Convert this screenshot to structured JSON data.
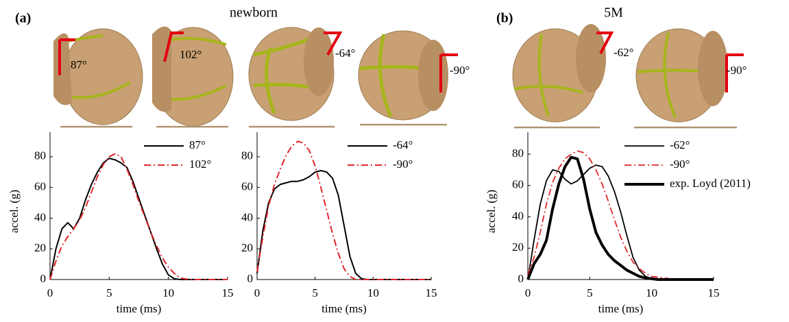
{
  "figure": {
    "panels": [
      {
        "label": "(a)",
        "title": "newborn",
        "angles": [
          "87°",
          "102°",
          "-64°",
          "-90°"
        ]
      },
      {
        "label": "(b)",
        "title": "5M",
        "angles": [
          "-62°",
          "-90°"
        ]
      }
    ]
  },
  "chart_data": [
    {
      "type": "line",
      "xlabel": "time (ms)",
      "ylabel": "accel. (g)",
      "xlim": [
        0,
        15
      ],
      "ylim": [
        0,
        96
      ],
      "xticks": [
        0,
        5,
        10,
        15
      ],
      "yticks": [
        0,
        20,
        40,
        60,
        80
      ],
      "legend": "upper right",
      "series": [
        {
          "name": "87°",
          "color": "#000000",
          "style": "solid",
          "width": 2,
          "x": [
            0,
            0.5,
            1,
            1.5,
            2,
            2.5,
            3,
            3.5,
            4,
            4.5,
            5,
            5.5,
            6,
            6.5,
            7,
            7.5,
            8,
            8.5,
            9,
            9.5,
            10,
            10.5,
            11,
            15
          ],
          "values": [
            0,
            20,
            33,
            37,
            33,
            40,
            52,
            62,
            70,
            76,
            79,
            78,
            76,
            73,
            64,
            53,
            42,
            31,
            20,
            10,
            3,
            0.5,
            0,
            0
          ]
        },
        {
          "name": "102°",
          "color": "#e0252a",
          "style": "dashdot",
          "width": 2,
          "x": [
            0,
            0.5,
            1,
            1.5,
            2,
            2.5,
            3,
            3.5,
            4,
            4.5,
            5,
            5.5,
            6,
            6.5,
            7,
            7.5,
            8,
            8.5,
            9,
            9.5,
            10,
            10.5,
            11,
            11.5,
            12,
            15
          ],
          "values": [
            0,
            12,
            22,
            28,
            33,
            39,
            47,
            57,
            67,
            75,
            80,
            82,
            80,
            72,
            62,
            51,
            41,
            31,
            22,
            14,
            8,
            4,
            1,
            0.3,
            0,
            0
          ]
        }
      ]
    },
    {
      "type": "line",
      "xlabel": "time (ms)",
      "xlim": [
        0,
        15
      ],
      "ylim": [
        0,
        96
      ],
      "xticks": [
        0,
        5,
        10,
        15
      ],
      "yticks": [
        0,
        20,
        40,
        60,
        80
      ],
      "legend": "upper right",
      "series": [
        {
          "name": "-64°",
          "color": "#000000",
          "style": "solid",
          "width": 2,
          "x": [
            0,
            0.5,
            1,
            1.5,
            2,
            2.5,
            3,
            3.5,
            4,
            4.5,
            5,
            5.5,
            6,
            6.5,
            7,
            7.5,
            8,
            8.5,
            9,
            9.5,
            15
          ],
          "values": [
            4,
            32,
            50,
            59,
            62,
            63,
            64,
            64,
            65,
            67,
            70,
            71,
            70,
            66,
            55,
            35,
            15,
            4,
            0.5,
            0,
            0
          ]
        },
        {
          "name": "-90°",
          "color": "#e0252a",
          "style": "dashdot",
          "width": 2,
          "x": [
            0,
            0.5,
            1,
            1.5,
            2,
            2.5,
            3,
            3.5,
            4,
            4.5,
            5,
            5.5,
            6,
            6.5,
            7,
            7.5,
            8,
            8.5,
            15
          ],
          "values": [
            5,
            28,
            48,
            62,
            72,
            81,
            87,
            90,
            89,
            84,
            74,
            60,
            45,
            30,
            17,
            7,
            2,
            0,
            0
          ]
        }
      ]
    },
    {
      "type": "line",
      "xlabel": "time (ms)",
      "ylabel": "accel. (g)",
      "xlim": [
        0,
        15
      ],
      "ylim": [
        0,
        94
      ],
      "xticks": [
        0,
        5,
        10,
        15
      ],
      "yticks": [
        0,
        20,
        40,
        60,
        80
      ],
      "legend": "upper right",
      "series": [
        {
          "name": "-62°",
          "color": "#000000",
          "style": "solid",
          "width": 1.8,
          "x": [
            0,
            0.5,
            1,
            1.5,
            2,
            2.5,
            3,
            3.5,
            4,
            4.5,
            5,
            5.5,
            6,
            6.5,
            7,
            7.5,
            8,
            8.5,
            9,
            9.5,
            10,
            11,
            15
          ],
          "values": [
            0,
            25,
            48,
            63,
            70,
            69,
            64,
            61,
            63,
            67,
            71,
            73,
            72,
            66,
            56,
            43,
            28,
            14,
            6,
            2,
            0.5,
            0,
            0
          ]
        },
        {
          "name": "-90°",
          "color": "#e0252a",
          "style": "dashdot",
          "width": 1.8,
          "x": [
            0,
            0.5,
            1,
            1.5,
            2,
            2.5,
            3,
            3.5,
            4,
            4.5,
            5,
            5.5,
            6,
            6.5,
            7,
            7.5,
            8,
            8.5,
            9,
            9.5,
            10,
            11,
            12,
            15
          ],
          "values": [
            3,
            14,
            30,
            48,
            62,
            71,
            77,
            80,
            82,
            81,
            77,
            70,
            61,
            50,
            38,
            27,
            18,
            11,
            7,
            4,
            2,
            1,
            0,
            0
          ]
        },
        {
          "name": "exp. Loyd (2011)",
          "color": "#000000",
          "style": "solid",
          "width": 4,
          "x": [
            0,
            0.5,
            1,
            1.5,
            2,
            2.5,
            3,
            3.5,
            4,
            4.5,
            5,
            5.5,
            6,
            6.5,
            7,
            7.5,
            8,
            8.5,
            9,
            9.5,
            10,
            10.5,
            15
          ],
          "values": [
            0,
            10,
            16,
            25,
            45,
            61,
            72,
            78,
            77,
            64,
            45,
            30,
            22,
            16,
            12,
            9,
            6,
            4,
            2,
            1,
            0.5,
            0,
            0
          ]
        }
      ]
    }
  ]
}
